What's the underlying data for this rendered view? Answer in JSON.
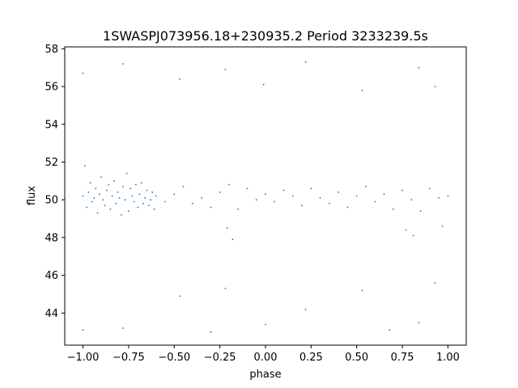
{
  "chart_data": {
    "type": "scatter",
    "title": "1SWASPJ073956.18+230935.2 Period 3233239.5s",
    "xlabel": "phase",
    "ylabel": "flux",
    "xlim": [
      -1.1,
      1.1
    ],
    "ylim": [
      42.3,
      58.1
    ],
    "xticks": [
      -1.0,
      -0.75,
      -0.5,
      -0.25,
      0.0,
      0.25,
      0.5,
      0.75,
      1.0
    ],
    "xtick_labels": [
      "−1.00",
      "−0.75",
      "−0.50",
      "−0.25",
      "0.00",
      "0.25",
      "0.50",
      "0.75",
      "1.00"
    ],
    "yticks": [
      44,
      46,
      48,
      50,
      52,
      54,
      56,
      58
    ],
    "ytick_labels": [
      "44",
      "46",
      "48",
      "50",
      "52",
      "54",
      "56",
      "58"
    ],
    "grid": false,
    "marker_color": "#1f77b4",
    "series": [
      {
        "points": [
          [
            -1.0,
            50.2
          ],
          [
            -0.99,
            51.8
          ],
          [
            -0.98,
            49.6
          ],
          [
            -0.97,
            50.4
          ],
          [
            -0.96,
            50.9
          ],
          [
            -0.95,
            49.9
          ],
          [
            -0.94,
            50.1
          ],
          [
            -0.93,
            50.6
          ],
          [
            -0.92,
            49.3
          ],
          [
            -0.91,
            50.3
          ],
          [
            -0.9,
            51.2
          ],
          [
            -0.89,
            50.0
          ],
          [
            -0.88,
            49.7
          ],
          [
            -0.87,
            50.5
          ],
          [
            -0.86,
            50.8
          ],
          [
            -0.85,
            49.5
          ],
          [
            -0.84,
            50.2
          ],
          [
            -0.83,
            51.0
          ],
          [
            -0.82,
            49.8
          ],
          [
            -0.81,
            50.4
          ],
          [
            -0.8,
            50.1
          ],
          [
            -0.79,
            49.2
          ],
          [
            -0.78,
            50.7
          ],
          [
            -0.77,
            50.0
          ],
          [
            -0.76,
            51.4
          ],
          [
            -0.75,
            49.4
          ],
          [
            -0.74,
            50.6
          ],
          [
            -0.73,
            50.2
          ],
          [
            -0.72,
            49.9
          ],
          [
            -0.71,
            50.8
          ],
          [
            -0.7,
            49.6
          ],
          [
            -0.69,
            50.3
          ],
          [
            -0.68,
            50.9
          ],
          [
            -0.67,
            49.8
          ],
          [
            -0.66,
            50.1
          ],
          [
            -0.65,
            50.5
          ],
          [
            -0.64,
            49.7
          ],
          [
            -0.63,
            50.0
          ],
          [
            -0.62,
            50.4
          ],
          [
            -0.61,
            49.5
          ],
          [
            -0.6,
            50.2
          ],
          [
            -0.55,
            49.9
          ],
          [
            -0.5,
            50.3
          ],
          [
            -0.45,
            50.7
          ],
          [
            -0.4,
            49.8
          ],
          [
            -0.35,
            50.1
          ],
          [
            -0.3,
            49.6
          ],
          [
            -0.25,
            50.4
          ],
          [
            -0.2,
            50.8
          ],
          [
            -0.15,
            49.5
          ],
          [
            -0.1,
            50.6
          ],
          [
            -0.05,
            50.0
          ],
          [
            0.0,
            50.3
          ],
          [
            0.05,
            49.9
          ],
          [
            0.1,
            50.5
          ],
          [
            0.15,
            50.2
          ],
          [
            0.2,
            49.7
          ],
          [
            0.25,
            50.6
          ],
          [
            0.3,
            50.1
          ],
          [
            0.35,
            49.8
          ],
          [
            0.4,
            50.4
          ],
          [
            0.45,
            49.6
          ],
          [
            0.5,
            50.2
          ],
          [
            0.55,
            50.7
          ],
          [
            0.6,
            49.9
          ],
          [
            0.65,
            50.3
          ],
          [
            0.7,
            49.5
          ],
          [
            0.75,
            50.5
          ],
          [
            0.8,
            50.0
          ],
          [
            0.85,
            49.4
          ],
          [
            0.9,
            50.6
          ],
          [
            0.95,
            50.1
          ],
          [
            1.0,
            50.2
          ],
          [
            -0.78,
            57.2
          ],
          [
            -0.78,
            43.2
          ],
          [
            -0.47,
            56.4
          ],
          [
            -0.47,
            44.9
          ],
          [
            -0.22,
            56.9
          ],
          [
            -0.22,
            45.3
          ],
          [
            0.22,
            57.3
          ],
          [
            0.22,
            44.2
          ],
          [
            -0.01,
            56.1
          ],
          [
            0.0,
            43.4
          ],
          [
            0.53,
            55.8
          ],
          [
            0.53,
            45.2
          ],
          [
            0.84,
            57.0
          ],
          [
            0.84,
            43.5
          ],
          [
            -0.3,
            43.0
          ],
          [
            0.68,
            43.1
          ],
          [
            -1.0,
            56.7
          ],
          [
            -1.0,
            43.1
          ],
          [
            0.93,
            56.0
          ],
          [
            0.93,
            45.6
          ],
          [
            -0.18,
            47.9
          ],
          [
            0.81,
            48.1
          ],
          [
            -0.21,
            48.5
          ],
          [
            0.77,
            48.4
          ],
          [
            0.97,
            48.6
          ]
        ]
      }
    ]
  }
}
